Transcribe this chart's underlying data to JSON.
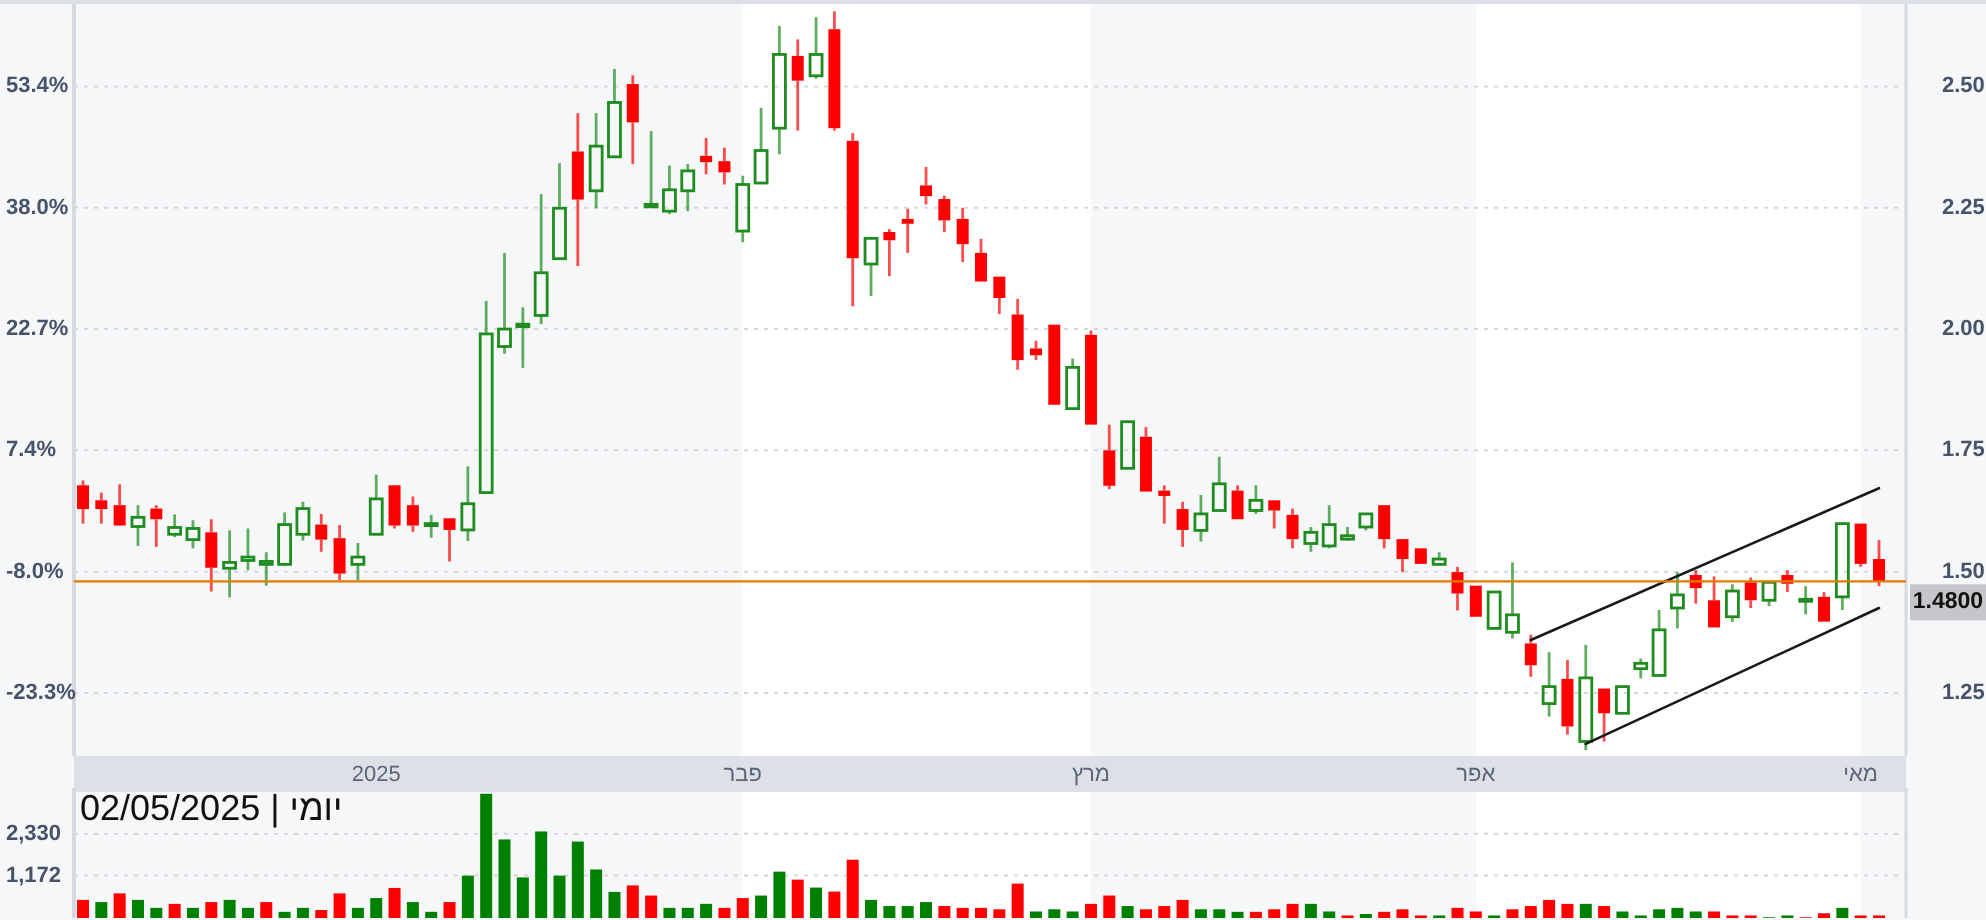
{
  "chart_data": [
    {
      "type": "candlestick",
      "categories": [
        null,
        null,
        null,
        null,
        null,
        null,
        null,
        null,
        null,
        null,
        null,
        null,
        null,
        null,
        null,
        null,
        "2025",
        null,
        null,
        null,
        null,
        null,
        null,
        null,
        null,
        null,
        null,
        null,
        null,
        null,
        null,
        null,
        null,
        null,
        null,
        null,
        "פבר",
        null,
        null,
        null,
        null,
        null,
        null,
        null,
        null,
        null,
        null,
        null,
        null,
        null,
        null,
        null,
        null,
        null,
        null,
        "מרץ",
        null,
        null,
        null,
        null,
        null,
        null,
        null,
        null,
        null,
        null,
        null,
        null,
        null,
        null,
        null,
        null,
        null,
        null,
        null,
        null,
        "אפר",
        null,
        null,
        null,
        null,
        null,
        null,
        null,
        null,
        null,
        null,
        null,
        null,
        null,
        null,
        null,
        null,
        null,
        null,
        null,
        null,
        "מאי",
        null
      ],
      "ohlc": [
        [
          1.678,
          1.688,
          1.599,
          1.629
        ],
        [
          1.647,
          1.663,
          1.599,
          1.629
        ],
        [
          1.637,
          1.68,
          1.595,
          1.595
        ],
        [
          1.593,
          1.637,
          1.553,
          1.612
        ],
        [
          1.63,
          1.637,
          1.551,
          1.608
        ],
        [
          1.577,
          1.618,
          1.571,
          1.591
        ],
        [
          1.566,
          1.606,
          1.548,
          1.589
        ],
        [
          1.581,
          1.608,
          1.459,
          1.508
        ],
        [
          1.507,
          1.585,
          1.447,
          1.519
        ],
        [
          1.523,
          1.589,
          1.503,
          1.53
        ],
        [
          1.515,
          1.54,
          1.471,
          1.521
        ],
        [
          1.515,
          1.622,
          1.512,
          1.597
        ],
        [
          1.577,
          1.644,
          1.564,
          1.63
        ],
        [
          1.597,
          1.619,
          1.541,
          1.566
        ],
        [
          1.569,
          1.596,
          1.482,
          1.496
        ],
        [
          1.515,
          1.559,
          1.482,
          1.53
        ],
        [
          1.577,
          1.7,
          1.577,
          1.65
        ],
        [
          1.678,
          1.678,
          1.589,
          1.595
        ],
        [
          1.637,
          1.655,
          1.582,
          1.595
        ],
        [
          1.595,
          1.617,
          1.57,
          1.599
        ],
        [
          1.61,
          1.61,
          1.521,
          1.586
        ],
        [
          1.586,
          1.717,
          1.563,
          1.64
        ],
        [
          1.663,
          2.058,
          1.663,
          1.99
        ],
        [
          1.964,
          2.157,
          1.949,
          2.0
        ],
        [
          2.005,
          2.045,
          1.92,
          2.01
        ],
        [
          2.028,
          2.278,
          2.01,
          2.116
        ],
        [
          2.145,
          2.342,
          2.145,
          2.249
        ],
        [
          2.366,
          2.445,
          2.13,
          2.267
        ],
        [
          2.285,
          2.445,
          2.249,
          2.377
        ],
        [
          2.355,
          2.536,
          2.355,
          2.467
        ],
        [
          2.505,
          2.523,
          2.34,
          2.426
        ],
        [
          2.252,
          2.408,
          2.252,
          2.257
        ],
        [
          2.243,
          2.337,
          2.237,
          2.287
        ],
        [
          2.285,
          2.34,
          2.243,
          2.326
        ],
        [
          2.357,
          2.394,
          2.319,
          2.344
        ],
        [
          2.346,
          2.374,
          2.298,
          2.323
        ],
        [
          2.202,
          2.316,
          2.179,
          2.298
        ],
        [
          2.301,
          2.456,
          2.301,
          2.368
        ],
        [
          2.414,
          2.625,
          2.36,
          2.566
        ],
        [
          2.563,
          2.597,
          2.409,
          2.512
        ],
        [
          2.522,
          2.643,
          2.516,
          2.566
        ],
        [
          2.618,
          2.655,
          2.409,
          2.414
        ],
        [
          2.388,
          2.404,
          2.047,
          2.146
        ],
        [
          2.134,
          2.187,
          2.068,
          2.187
        ],
        [
          2.2,
          2.206,
          2.109,
          2.183
        ],
        [
          2.227,
          2.248,
          2.157,
          2.217
        ],
        [
          2.296,
          2.334,
          2.257,
          2.274
        ],
        [
          2.268,
          2.275,
          2.2,
          2.224
        ],
        [
          2.227,
          2.25,
          2.138,
          2.175
        ],
        [
          2.157,
          2.186,
          2.098,
          2.098
        ],
        [
          2.108,
          2.108,
          2.031,
          2.064
        ],
        [
          2.03,
          2.062,
          1.916,
          1.936
        ],
        [
          1.96,
          1.976,
          1.936,
          1.946
        ],
        [
          2.009,
          2.009,
          1.844,
          1.844
        ],
        [
          1.836,
          1.939,
          1.836,
          1.921
        ],
        [
          1.988,
          1.997,
          1.803,
          1.803
        ],
        [
          1.75,
          1.803,
          1.67,
          1.677
        ],
        [
          1.713,
          1.809,
          1.713,
          1.809
        ],
        [
          1.778,
          1.798,
          1.665,
          1.665
        ],
        [
          1.667,
          1.678,
          1.599,
          1.656
        ],
        [
          1.629,
          1.644,
          1.551,
          1.586
        ],
        [
          1.585,
          1.658,
          1.562,
          1.619
        ],
        [
          1.626,
          1.737,
          1.626,
          1.681
        ],
        [
          1.667,
          1.678,
          1.608,
          1.608
        ],
        [
          1.626,
          1.678,
          1.619,
          1.647
        ],
        [
          1.647,
          1.647,
          1.589,
          1.626
        ],
        [
          1.617,
          1.63,
          1.548,
          1.567
        ],
        [
          1.558,
          1.592,
          1.541,
          1.581
        ],
        [
          1.553,
          1.637,
          1.548,
          1.597
        ],
        [
          1.567,
          1.592,
          1.564,
          1.574
        ],
        [
          1.592,
          1.619,
          1.585,
          1.619
        ],
        [
          1.637,
          1.637,
          1.548,
          1.567
        ],
        [
          1.567,
          1.567,
          1.499,
          1.526
        ],
        [
          1.548,
          1.548,
          1.516,
          1.516
        ],
        [
          1.515,
          1.54,
          1.515,
          1.526
        ],
        [
          1.499,
          1.51,
          1.42,
          1.455
        ],
        [
          1.471,
          1.471,
          1.407,
          1.407
        ],
        [
          1.383,
          1.458,
          1.383,
          1.458
        ],
        [
          1.375,
          1.519,
          1.362,
          1.411
        ],
        [
          1.352,
          1.37,
          1.283,
          1.307
        ],
        [
          1.228,
          1.334,
          1.201,
          1.263
        ],
        [
          1.279,
          1.318,
          1.164,
          1.181
        ],
        [
          1.15,
          1.349,
          1.132,
          1.281
        ],
        [
          1.259,
          1.259,
          1.15,
          1.208
        ],
        [
          1.208,
          1.263,
          1.208,
          1.263
        ],
        [
          1.3,
          1.321,
          1.28,
          1.311
        ],
        [
          1.286,
          1.421,
          1.286,
          1.38
        ],
        [
          1.425,
          1.499,
          1.383,
          1.452
        ],
        [
          1.493,
          1.503,
          1.434,
          1.466
        ],
        [
          1.441,
          1.49,
          1.385,
          1.385
        ],
        [
          1.407,
          1.474,
          1.396,
          1.46
        ],
        [
          1.478,
          1.488,
          1.425,
          1.441
        ],
        [
          1.441,
          1.48,
          1.429,
          1.478
        ],
        [
          1.493,
          1.503,
          1.458,
          1.475
        ],
        [
          1.44,
          1.47,
          1.412,
          1.443
        ],
        [
          1.448,
          1.458,
          1.396,
          1.397
        ],
        [
          1.448,
          1.599,
          1.421,
          1.599
        ],
        [
          1.599,
          1.599,
          1.51,
          1.516
        ],
        [
          1.526,
          1.565,
          1.47,
          1.48
        ]
      ],
      "colors": [
        "#ff0000",
        "#ff0000",
        "#ff0000",
        "#1e8c1e",
        "#ff0000",
        "#1e8c1e",
        "#1e8c1e",
        "#ff0000",
        "#1e8c1e",
        "#1e8c1e",
        "#1e8c1e",
        "#1e8c1e",
        "#1e8c1e",
        "#ff0000",
        "#ff0000",
        "#1e8c1e",
        "#1e8c1e",
        "#ff0000",
        "#ff0000",
        "#1e8c1e",
        "#ff0000",
        "#1e8c1e",
        "#1e8c1e",
        "#1e8c1e",
        "#1e8c1e",
        "#1e8c1e",
        "#1e8c1e",
        "#ff0000",
        "#1e8c1e",
        "#1e8c1e",
        "#ff0000",
        "#1e8c1e",
        "#1e8c1e",
        "#1e8c1e",
        "#ff0000",
        "#ff0000",
        "#1e8c1e",
        "#1e8c1e",
        "#1e8c1e",
        "#ff0000",
        "#1e8c1e",
        "#ff0000",
        "#ff0000",
        "#1e8c1e",
        "#ff0000",
        "#ff0000",
        "#ff0000",
        "#ff0000",
        "#ff0000",
        "#ff0000",
        "#ff0000",
        "#ff0000",
        "#ff0000",
        "#ff0000",
        "#1e8c1e",
        "#ff0000",
        "#ff0000",
        "#1e8c1e",
        "#ff0000",
        "#ff0000",
        "#ff0000",
        "#1e8c1e",
        "#1e8c1e",
        "#ff0000",
        "#1e8c1e",
        "#ff0000",
        "#ff0000",
        "#1e8c1e",
        "#1e8c1e",
        "#1e8c1e",
        "#1e8c1e",
        "#ff0000",
        "#ff0000",
        "#ff0000",
        "#1e8c1e",
        "#ff0000",
        "#ff0000",
        "#1e8c1e",
        "#1e8c1e",
        "#ff0000",
        "#1e8c1e",
        "#ff0000",
        "#1e8c1e",
        "#ff0000",
        "#1e8c1e",
        "#1e8c1e",
        "#1e8c1e",
        "#1e8c1e",
        "#ff0000",
        "#ff0000",
        "#1e8c1e",
        "#ff0000",
        "#1e8c1e",
        "#ff0000",
        "#1e8c1e",
        "#ff0000",
        "#1e8c1e",
        "#ff0000",
        "#ff0000"
      ],
      "series": [
        {
          "type": "line",
          "color": "#1a1a1a",
          "values": [
            null,
            null,
            null,
            null,
            null,
            null,
            null,
            null,
            null,
            null,
            null,
            null,
            null,
            null,
            null,
            null,
            null,
            null,
            null,
            null,
            null,
            null,
            null,
            null,
            null,
            null,
            null,
            null,
            null,
            null,
            null,
            null,
            null,
            null,
            null,
            null,
            null,
            null,
            null,
            null,
            null,
            null,
            null,
            null,
            null,
            null,
            null,
            null,
            null,
            null,
            null,
            null,
            null,
            null,
            null,
            null,
            null,
            null,
            null,
            null,
            null,
            null,
            null,
            null,
            null,
            null,
            null,
            null,
            null,
            null,
            null,
            null,
            null,
            null,
            null,
            null,
            null,
            null,
            null,
            1.359,
            null,
            null,
            null,
            null,
            null,
            null,
            null,
            null,
            null,
            null,
            null,
            null,
            null,
            null,
            null,
            null,
            null,
            null,
            1.672
          ]
        },
        {
          "type": "line",
          "color": "#1a1a1a",
          "values": [
            null,
            null,
            null,
            null,
            null,
            null,
            null,
            null,
            null,
            null,
            null,
            null,
            null,
            null,
            null,
            null,
            null,
            null,
            null,
            null,
            null,
            null,
            null,
            null,
            null,
            null,
            null,
            null,
            null,
            null,
            null,
            null,
            null,
            null,
            null,
            null,
            null,
            null,
            null,
            null,
            null,
            null,
            null,
            null,
            null,
            null,
            null,
            null,
            null,
            null,
            null,
            null,
            null,
            null,
            null,
            null,
            null,
            null,
            null,
            null,
            null,
            null,
            null,
            null,
            null,
            null,
            null,
            null,
            null,
            null,
            null,
            null,
            null,
            null,
            null,
            null,
            null,
            null,
            null,
            null,
            null,
            null,
            1.145,
            null,
            null,
            null,
            null,
            null,
            null,
            null,
            null,
            null,
            null,
            null,
            null,
            null,
            null,
            null,
            1.425
          ]
        }
      ],
      "ylim": [
        1.12,
        2.67
      ],
      "yticks": [
        {
          "value": 1.25,
          "label": "1.25"
        },
        {
          "value": 1.5,
          "label": "1.50"
        },
        {
          "value": 1.75,
          "label": "1.75"
        },
        {
          "value": 2,
          "label": "2.00"
        },
        {
          "value": 2.25,
          "label": "2.25"
        },
        {
          "value": 2.5,
          "label": "2.50"
        }
      ],
      "y2lim": [
        -31.3,
        63.8
      ],
      "y2ticks": [
        {
          "value": -23.3,
          "label": "-23.3%"
        },
        {
          "value": -8,
          "label": "-8.0%"
        },
        {
          "value": 7.4,
          "label": "7.4%"
        },
        {
          "value": 22.7,
          "label": "22.7%"
        },
        {
          "value": 38,
          "label": "38.0%"
        },
        {
          "value": 53.4,
          "label": "53.4%"
        }
      ],
      "grid": "y",
      "ref_lines": [
        {
          "axis": "y",
          "value": 1.48,
          "label": "1.4800",
          "color": "#e07b00"
        }
      ],
      "bands": [
        {
          "axis": "x",
          "from": "פבר",
          "to": "מרץ",
          "color": "#ffffff"
        },
        {
          "axis": "x",
          "from": "אפר",
          "to": "מאי",
          "color": "#ffffff"
        }
      ]
    },
    {
      "type": "bar",
      "title": "02/05/2025 | יומי",
      "categories": [
        null,
        null,
        null,
        null,
        null,
        null,
        null,
        null,
        null,
        null,
        null,
        null,
        null,
        null,
        null,
        null,
        "2025",
        null,
        null,
        null,
        null,
        null,
        null,
        null,
        null,
        null,
        null,
        null,
        null,
        null,
        null,
        null,
        null,
        null,
        null,
        null,
        "פבר",
        null,
        null,
        null,
        null,
        null,
        null,
        null,
        null,
        null,
        null,
        null,
        null,
        null,
        null,
        null,
        null,
        null,
        null,
        "מרץ",
        null,
        null,
        null,
        null,
        null,
        null,
        null,
        null,
        null,
        null,
        null,
        null,
        null,
        null,
        null,
        null,
        null,
        null,
        null,
        null,
        "אפר",
        null,
        null,
        null,
        null,
        null,
        null,
        null,
        null,
        null,
        null,
        null,
        null,
        null,
        null,
        null,
        null,
        null,
        null,
        null,
        null,
        "מאי",
        null
      ],
      "values": [
        500,
        440,
        680,
        500,
        280,
        390,
        280,
        440,
        500,
        280,
        440,
        170,
        280,
        220,
        680,
        280,
        550,
        830,
        440,
        170,
        440,
        1170,
        3430,
        2170,
        1120,
        2390,
        1170,
        2110,
        1340,
        720,
        900,
        620,
        280,
        280,
        390,
        280,
        550,
        620,
        1280,
        1060,
        840,
        730,
        1610,
        500,
        330,
        330,
        440,
        330,
        280,
        280,
        240,
        950,
        180,
        240,
        180,
        390,
        620,
        330,
        240,
        330,
        500,
        240,
        240,
        170,
        170,
        240,
        390,
        390,
        180,
        70,
        110,
        170,
        240,
        70,
        70,
        280,
        180,
        70,
        240,
        330,
        500,
        390,
        390,
        330,
        180,
        70,
        240,
        280,
        180,
        180,
        70,
        70,
        20,
        70,
        20,
        130,
        280,
        70,
        70
      ],
      "colors": [
        "#ff0000",
        "#008000",
        "#ff0000",
        "#008000",
        "#008000",
        "#ff0000",
        "#008000",
        "#ff0000",
        "#008000",
        "#008000",
        "#ff0000",
        "#008000",
        "#008000",
        "#ff0000",
        "#ff0000",
        "#008000",
        "#008000",
        "#ff0000",
        "#008000",
        "#008000",
        "#ff0000",
        "#008000",
        "#008000",
        "#008000",
        "#008000",
        "#008000",
        "#008000",
        "#008000",
        "#008000",
        "#008000",
        "#ff0000",
        "#ff0000",
        "#008000",
        "#008000",
        "#008000",
        "#ff0000",
        "#ff0000",
        "#008000",
        "#008000",
        "#ff0000",
        "#008000",
        "#ff0000",
        "#ff0000",
        "#008000",
        "#008000",
        "#008000",
        "#008000",
        "#ff0000",
        "#ff0000",
        "#ff0000",
        "#ff0000",
        "#ff0000",
        "#008000",
        "#008000",
        "#008000",
        "#ff0000",
        "#ff0000",
        "#008000",
        "#ff0000",
        "#ff0000",
        "#ff0000",
        "#008000",
        "#008000",
        "#008000",
        "#ff0000",
        "#ff0000",
        "#ff0000",
        "#008000",
        "#008000",
        "#ff0000",
        "#008000",
        "#ff0000",
        "#ff0000",
        "#ff0000",
        "#008000",
        "#ff0000",
        "#ff0000",
        "#008000",
        "#ff0000",
        "#ff0000",
        "#ff0000",
        "#ff0000",
        "#008000",
        "#ff0000",
        "#008000",
        "#008000",
        "#008000",
        "#008000",
        "#008000",
        "#ff0000",
        "#ff0000",
        "#ff0000",
        "#008000",
        "#008000",
        "#ff0000",
        "#ff0000",
        "#008000",
        "#ff0000",
        "#ff0000"
      ],
      "ylim": [
        0,
        3480
      ],
      "yticks": [
        {
          "value": 1172,
          "label": "1,172"
        },
        {
          "value": 2330,
          "label": "2,330"
        }
      ],
      "grid": "y",
      "tick_labels": "y",
      "bands": [
        {
          "axis": "x",
          "from": "פבר",
          "to": "מרץ",
          "color": "#ffffff"
        },
        {
          "axis": "x",
          "from": "אפר",
          "to": "מאי",
          "color": "#ffffff"
        }
      ]
    }
  ]
}
